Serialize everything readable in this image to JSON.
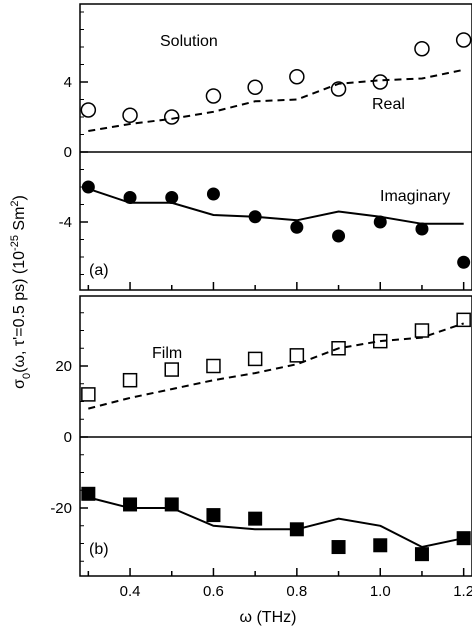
{
  "chart_data": [
    {
      "type": "scatter",
      "panel_label": "(a)",
      "title": "Solution",
      "xlim": [
        0.28,
        1.22
      ],
      "ylim": [
        -7,
        7
      ],
      "yticks": [
        -4,
        0,
        4
      ],
      "ytick_labels": [
        "-4",
        "0",
        "4"
      ],
      "grid": false,
      "series": [
        {
          "name": "Real",
          "marker": "open-circle",
          "x": [
            0.3,
            0.4,
            0.5,
            0.6,
            0.7,
            0.8,
            0.9,
            1.0,
            1.1,
            1.2
          ],
          "y": [
            2.4,
            2.1,
            2.0,
            3.2,
            3.7,
            4.3,
            3.6,
            4.0,
            5.9,
            6.4
          ]
        },
        {
          "name": "Real fit",
          "style": "dashed",
          "x": [
            0.3,
            0.4,
            0.5,
            0.6,
            0.7,
            0.8,
            0.9,
            1.0,
            1.1,
            1.2
          ],
          "y": [
            1.2,
            1.6,
            1.9,
            2.3,
            2.9,
            3.0,
            3.9,
            4.1,
            4.2,
            4.7
          ]
        },
        {
          "name": "Imaginary",
          "marker": "filled-circle",
          "x": [
            0.3,
            0.4,
            0.5,
            0.6,
            0.7,
            0.8,
            0.9,
            1.0,
            1.1,
            1.2
          ],
          "y": [
            -2.0,
            -2.6,
            -2.6,
            -2.4,
            -3.7,
            -4.3,
            -4.8,
            -4.0,
            -4.4,
            -6.3
          ]
        },
        {
          "name": "Imaginary fit",
          "style": "solid",
          "x": [
            0.3,
            0.4,
            0.5,
            0.6,
            0.7,
            0.8,
            0.9,
            1.0,
            1.1,
            1.2
          ],
          "y": [
            -2.1,
            -2.9,
            -2.9,
            -3.6,
            -3.7,
            -3.9,
            -3.4,
            -3.7,
            -4.1,
            -4.1
          ]
        }
      ],
      "annotations": [
        "Real",
        "Imaginary"
      ]
    },
    {
      "type": "scatter",
      "panel_label": "(b)",
      "title": "Film",
      "xlim": [
        0.28,
        1.22
      ],
      "ylim": [
        -37,
        37
      ],
      "yticks": [
        -20,
        0,
        20
      ],
      "ytick_labels": [
        "-20",
        "0",
        "20"
      ],
      "xticks": [
        0.4,
        0.6,
        0.8,
        1.0,
        1.2
      ],
      "xtick_labels": [
        "0.4",
        "0.6",
        "0.8",
        "1.0",
        "1.2"
      ],
      "xlabel": "ω (THz)",
      "grid": false,
      "series": [
        {
          "name": "Real",
          "marker": "open-square",
          "x": [
            0.3,
            0.4,
            0.5,
            0.6,
            0.7,
            0.8,
            0.9,
            1.0,
            1.1,
            1.2
          ],
          "y": [
            12,
            16,
            19,
            20,
            22,
            23,
            25,
            27,
            30,
            33
          ]
        },
        {
          "name": "Real fit",
          "style": "dashed",
          "x": [
            0.3,
            0.4,
            0.5,
            0.6,
            0.7,
            0.8,
            0.9,
            1.0,
            1.1,
            1.2
          ],
          "y": [
            8,
            11,
            13.5,
            16,
            18,
            20.5,
            25,
            27,
            28,
            32
          ]
        },
        {
          "name": "Imaginary",
          "marker": "filled-square",
          "x": [
            0.3,
            0.4,
            0.5,
            0.6,
            0.7,
            0.8,
            0.9,
            1.0,
            1.1,
            1.2
          ],
          "y": [
            -16,
            -19,
            -19,
            -22,
            -23,
            -26,
            -31,
            -30.5,
            -33,
            -28.5
          ]
        },
        {
          "name": "Imaginary fit",
          "style": "solid",
          "x": [
            0.3,
            0.4,
            0.5,
            0.6,
            0.7,
            0.8,
            0.9,
            1.0,
            1.1,
            1.2
          ],
          "y": [
            -17,
            -20,
            -20,
            -25,
            -26,
            -26,
            -23,
            -25,
            -31,
            -28.5
          ]
        }
      ]
    }
  ],
  "ylabel_shared": "σ0(ω, τ'=0.5 ps)  (10-25 Sm2)"
}
